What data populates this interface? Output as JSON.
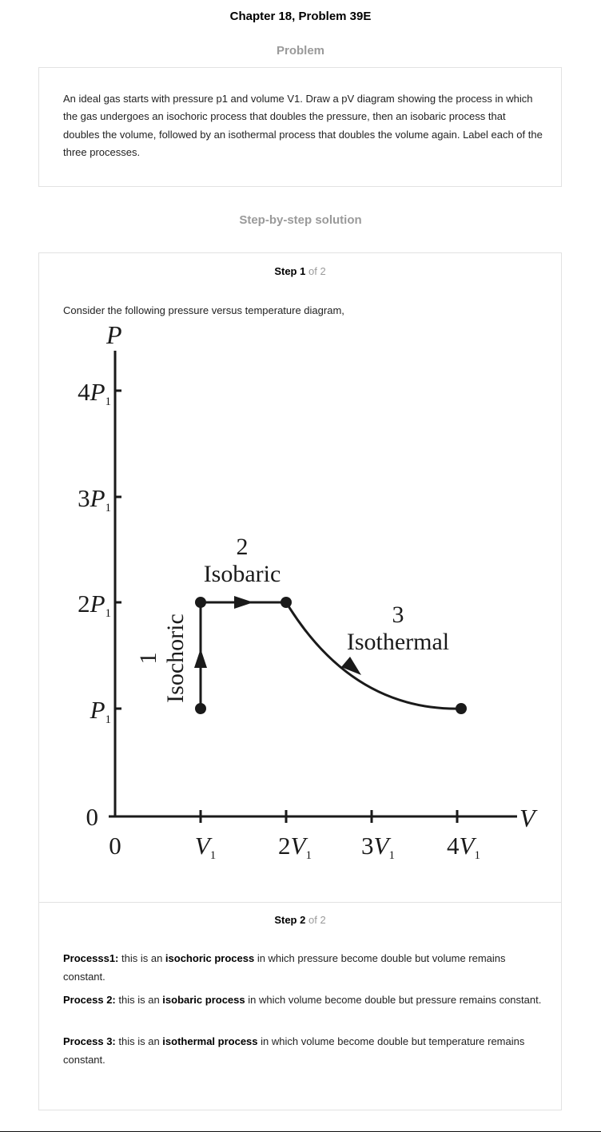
{
  "chapter_title": "Chapter 18, Problem 39E",
  "problem_heading": "Problem",
  "problem_text": "An ideal gas starts with pressure p1 and volume V1. Draw a pV diagram showing the process in which the gas undergoes an isochoric process that doubles the pressure, then an isobaric process that doubles the volume, followed by an isothermal process that doubles the volume again. Label each of the three processes.",
  "solution_heading": "Step-by-step solution",
  "step1": {
    "word": "Step",
    "number": "1",
    "of_text": "of 2",
    "intro": "Consider the following pressure versus temperature diagram,"
  },
  "step2": {
    "word": "Step",
    "number": "2",
    "of_text": "of 2",
    "processes": [
      {
        "label": "Processs1:",
        "pre": " this is an ",
        "bold": "isochoric process",
        "post": " in which pressure become double but volume remains constant."
      },
      {
        "label": "Process 2:",
        "pre": " this is an ",
        "bold": "isobaric process",
        "post": " in which volume become double but pressure remains constant."
      },
      {
        "label": "Process 3:",
        "pre": " this is an ",
        "bold": "isothermal process",
        "post": " in which volume become double but temperature remains constant."
      }
    ]
  },
  "diagram": {
    "y_axis_label": "P",
    "x_axis_label": "V",
    "y_ticks": [
      {
        "coef": "4",
        "sym": "P",
        "sub": "1"
      },
      {
        "coef": "3",
        "sym": "P",
        "sub": "1"
      },
      {
        "coef": "2",
        "sym": "P",
        "sub": "1"
      },
      {
        "coef": "",
        "sym": "P",
        "sub": "1"
      },
      {
        "coef": "0",
        "sym": "",
        "sub": ""
      }
    ],
    "x_ticks": [
      {
        "coef": "0",
        "sym": "",
        "sub": ""
      },
      {
        "coef": "",
        "sym": "V",
        "sub": "1"
      },
      {
        "coef": "2",
        "sym": "V",
        "sub": "1"
      },
      {
        "coef": "3",
        "sym": "V",
        "sub": "1"
      },
      {
        "coef": "4",
        "sym": "V",
        "sub": "1"
      }
    ],
    "process1_number": "1",
    "process1_name": "Isochoric",
    "process2_number": "2",
    "process2_name": "Isobaric",
    "process3_number": "3",
    "process3_name": "Isothermal",
    "line_color": "#1a1a1a"
  }
}
